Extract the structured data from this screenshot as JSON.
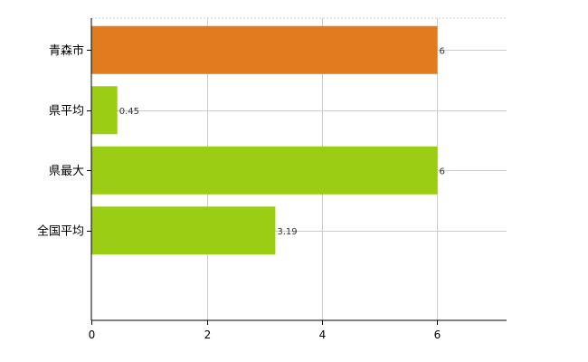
{
  "chart_data": {
    "type": "bar",
    "orientation": "horizontal",
    "categories": [
      "青森市",
      "県平均",
      "県最大",
      "全国平均"
    ],
    "values": [
      6,
      0.45,
      6,
      3.19
    ],
    "value_labels": [
      "6",
      "0.45",
      "6",
      "3.19"
    ],
    "colors": [
      "#e07b1f",
      "#9acd14",
      "#9acd14",
      "#9acd14"
    ],
    "title": "",
    "xlabel": "",
    "ylabel": "",
    "xlim": [
      0,
      7.2
    ],
    "x_ticks": [
      0,
      2,
      4,
      6
    ],
    "x_tick_labels": [
      "0",
      "2",
      "4",
      "6"
    ],
    "grid": true,
    "legend": "none"
  }
}
